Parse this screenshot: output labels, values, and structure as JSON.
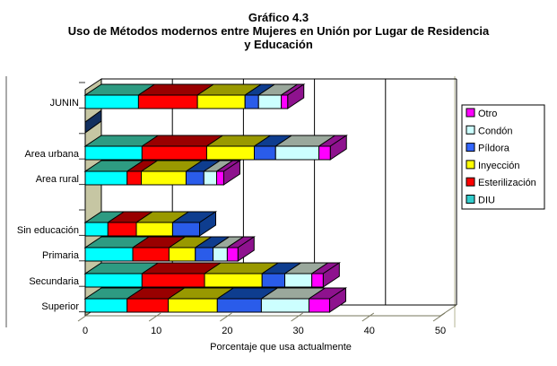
{
  "title": {
    "line1": "Gráfico 4.3",
    "line2": "Uso de Métodos modernos entre Mujeres en Unión por Lugar de Residencia",
    "line3": "y Educación"
  },
  "chart_data": {
    "type": "bar",
    "orientation": "horizontal",
    "stacked": true,
    "style": "3d",
    "title": "Gráfico 4.3 — Uso de Métodos modernos entre Mujeres en Unión por Lugar de Residencia y Educación",
    "xlabel": "Porcentaje que usa actualmente",
    "xlim": [
      0,
      50
    ],
    "xticks": [
      0,
      10,
      20,
      30,
      40,
      50
    ],
    "grid": true,
    "legend_position": "right",
    "categories": [
      "JUNIN",
      "Area urbana",
      "Area rural",
      "Sin educación",
      "Primaria",
      "Secundaria",
      "Superior"
    ],
    "series": [
      {
        "name": "DIU",
        "color": "#00FFFF",
        "top_color": "#2E9B82",
        "legend_color": "#33CCCC",
        "values": [
          7.5,
          8.0,
          5.9,
          3.2,
          6.7,
          8.0,
          5.9
        ]
      },
      {
        "name": "Esterilización",
        "color": "#FF0000",
        "top_color": "#990000",
        "legend_color": "#FF0000",
        "values": [
          8.3,
          9.1,
          2.0,
          4.0,
          5.1,
          8.8,
          5.8
        ]
      },
      {
        "name": "Inyección",
        "color": "#FFFF00",
        "top_color": "#999900",
        "legend_color": "#FFFF00",
        "values": [
          6.7,
          6.7,
          6.3,
          5.1,
          3.7,
          8.1,
          6.9
        ]
      },
      {
        "name": "Píldora",
        "color": "#2A5CEA",
        "top_color": "#0E3D8F",
        "legend_color": "#3366FF",
        "values": [
          1.9,
          3.0,
          2.5,
          3.8,
          2.5,
          3.2,
          6.2
        ]
      },
      {
        "name": "Condón",
        "color": "#CCFFFF",
        "top_color": "#9AA89C",
        "legend_color": "#CCFFFF",
        "values": [
          3.2,
          6.1,
          1.8,
          0.0,
          2.0,
          3.8,
          6.7
        ]
      },
      {
        "name": "Otro",
        "color": "#FF00FF",
        "top_color": "#8E128E",
        "legend_color": "#FF00FF",
        "values": [
          0.9,
          1.6,
          1.0,
          0.0,
          1.5,
          1.6,
          2.9
        ]
      }
    ],
    "legend_order": [
      "Otro",
      "Condón",
      "Píldora",
      "Inyección",
      "Esterilización",
      "DIU"
    ],
    "colors": {
      "wall": "#C6C6A3",
      "axis_line": "#77775E",
      "gridline": "#000000",
      "phantom_stripe": "#13305F"
    }
  }
}
